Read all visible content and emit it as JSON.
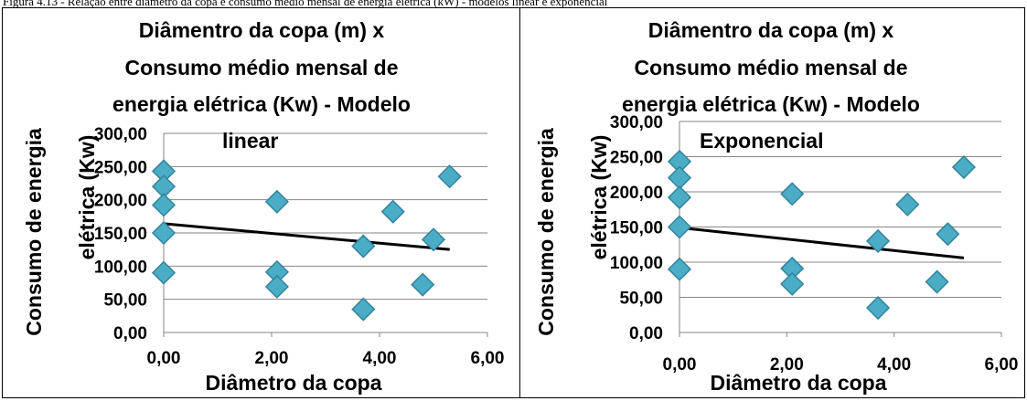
{
  "caption": "Figura 4.13 - Relação entre diâmetro da copa e consumo médio mensal de energia elétrica (kW) - modelos linear e exponencial",
  "colors": {
    "marker": "#4BACC6",
    "marker_edge": "#31849B",
    "trend": "#000000",
    "grid": "#868686"
  },
  "chart_data": [
    {
      "type": "scatter",
      "title_lines": [
        "Diâmentro da copa (m) x",
        "Consumo médio mensal de",
        "energia elétrica (Kw) - Modelo",
        "linear"
      ],
      "xlabel": "Diâmetro da copa",
      "ylabel_lines": [
        "Consumo de energia",
        "elétrica (Kw)"
      ],
      "xlim": [
        0,
        6
      ],
      "ylim": [
        0,
        300
      ],
      "x_ticks": [
        "0,00",
        "2,00",
        "4,00",
        "6,00"
      ],
      "y_ticks": [
        "0,00",
        "50,00",
        "100,00",
        "150,00",
        "200,00",
        "250,00",
        "300,00"
      ],
      "grid": "horizontal",
      "points": [
        {
          "x": 0.0,
          "y": 243
        },
        {
          "x": 0.0,
          "y": 220
        },
        {
          "x": 0.0,
          "y": 192
        },
        {
          "x": 0.0,
          "y": 150
        },
        {
          "x": 0.0,
          "y": 90
        },
        {
          "x": 2.1,
          "y": 197
        },
        {
          "x": 2.1,
          "y": 91
        },
        {
          "x": 2.1,
          "y": 69
        },
        {
          "x": 3.7,
          "y": 130
        },
        {
          "x": 3.7,
          "y": 35
        },
        {
          "x": 4.25,
          "y": 182
        },
        {
          "x": 4.8,
          "y": 72
        },
        {
          "x": 5.0,
          "y": 140
        },
        {
          "x": 5.3,
          "y": 235
        }
      ],
      "trendline": {
        "model": "linear",
        "x_start": 0,
        "x_end": 5.3,
        "y_start": 164,
        "y_end": 125
      }
    },
    {
      "type": "scatter",
      "title_lines": [
        "Diâmentro da copa (m) x",
        "Consumo médio mensal de",
        "energia elétrica (Kw) - Modelo",
        "Exponencial"
      ],
      "xlabel": "Diâmetro da copa",
      "ylabel_lines": [
        "Consumo de energia",
        "elétrica (Kw)"
      ],
      "xlim": [
        0,
        6
      ],
      "ylim": [
        0,
        300
      ],
      "x_ticks": [
        "0,00",
        "2,00",
        "4,00",
        "6,00"
      ],
      "y_ticks": [
        "0,00",
        "50,00",
        "100,00",
        "150,00",
        "200,00",
        "250,00",
        "300,00"
      ],
      "grid": "horizontal",
      "points": [
        {
          "x": 0.0,
          "y": 243
        },
        {
          "x": 0.0,
          "y": 220
        },
        {
          "x": 0.0,
          "y": 192
        },
        {
          "x": 0.0,
          "y": 150
        },
        {
          "x": 0.0,
          "y": 90
        },
        {
          "x": 2.1,
          "y": 197
        },
        {
          "x": 2.1,
          "y": 91
        },
        {
          "x": 2.1,
          "y": 69
        },
        {
          "x": 3.7,
          "y": 130
        },
        {
          "x": 3.7,
          "y": 35
        },
        {
          "x": 4.25,
          "y": 182
        },
        {
          "x": 4.8,
          "y": 72
        },
        {
          "x": 5.0,
          "y": 140
        },
        {
          "x": 5.3,
          "y": 235
        }
      ],
      "trendline": {
        "model": "exponential",
        "x_start": 0,
        "x_end": 5.3,
        "y_start": 149,
        "y_end": 106
      }
    }
  ]
}
